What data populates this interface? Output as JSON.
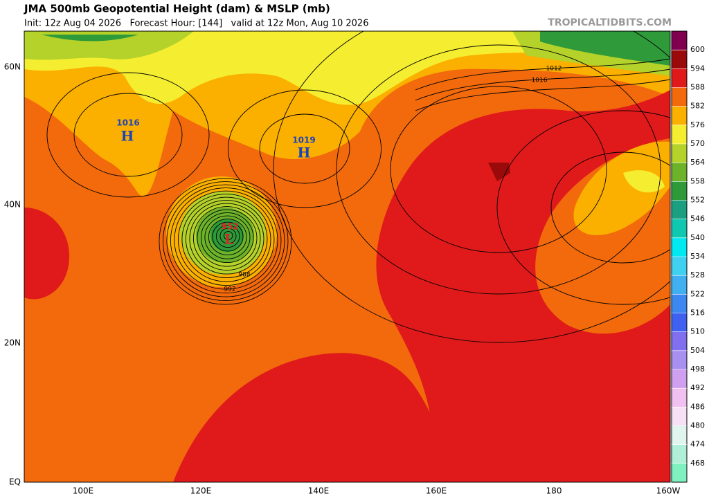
{
  "header": {
    "title": "JMA 500mb Geopotential Height (dam) & MSLP (mb)",
    "subtitle": "Init: 12z Aug 04 2026   Forecast Hour: [144]   valid at 12z Mon, Aug 10 2026",
    "brand": "TROPICALTIDBITS.COM"
  },
  "map": {
    "lat_labels": [
      "60N",
      "40N",
      "20N",
      "EQ"
    ],
    "lon_labels": [
      "100E",
      "120E",
      "140E",
      "160E",
      "180",
      "160W"
    ],
    "pressure_centers": [
      {
        "label": "1016",
        "symbol": "H"
      },
      {
        "label": "1019",
        "symbol": "H"
      },
      {
        "label": "952",
        "symbol": "L"
      }
    ],
    "isobar_labels": [
      "988",
      "992",
      "1012",
      "1016"
    ]
  },
  "colorbar": {
    "labels": [
      600,
      594,
      588,
      582,
      576,
      570,
      564,
      558,
      552,
      546,
      540,
      534,
      528,
      522,
      516,
      510,
      504,
      498,
      492,
      486,
      480,
      474,
      468
    ],
    "colors": [
      "#800050",
      "#9a0a0a",
      "#e01a1a",
      "#f26a0c",
      "#fbb000",
      "#f5ee30",
      "#b4d22a",
      "#6cb32a",
      "#2e9a3a",
      "#1aa080",
      "#10c8b0",
      "#00e8f0",
      "#40d0f0",
      "#40b0f0",
      "#3c88f0",
      "#4060f0",
      "#8070f0",
      "#a890f0",
      "#d0a0f0",
      "#f0c0f0",
      "#f5e0f5",
      "#e0f5ee",
      "#b0f0d8",
      "#80f0c0"
    ]
  }
}
